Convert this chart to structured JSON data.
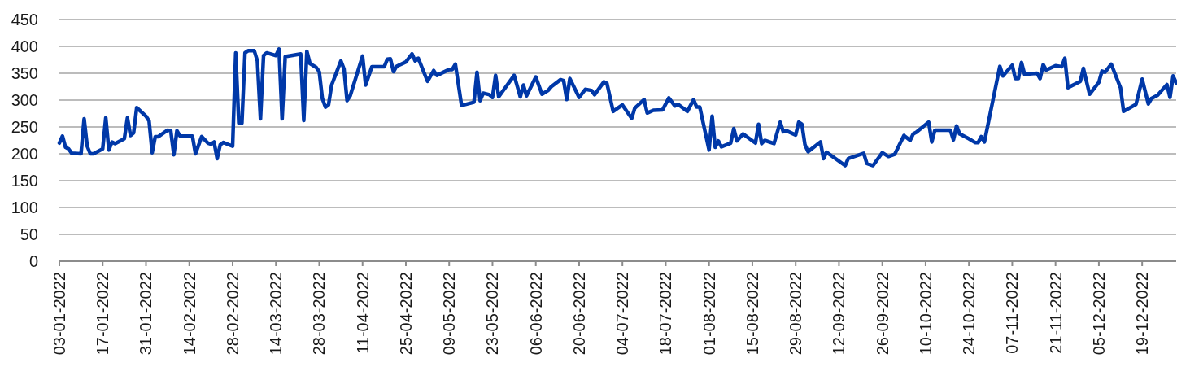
{
  "chart_data": {
    "type": "line",
    "x": [
      "2022-01-03",
      "2022-01-04",
      "2022-01-05",
      "2022-01-06",
      "2022-01-07",
      "2022-01-10",
      "2022-01-11",
      "2022-01-12",
      "2022-01-13",
      "2022-01-14",
      "2022-01-17",
      "2022-01-18",
      "2022-01-19",
      "2022-01-20",
      "2022-01-21",
      "2022-01-24",
      "2022-01-25",
      "2022-01-26",
      "2022-01-27",
      "2022-01-28",
      "2022-01-31",
      "2022-02-01",
      "2022-02-02",
      "2022-02-03",
      "2022-02-04",
      "2022-02-07",
      "2022-02-08",
      "2022-02-09",
      "2022-02-10",
      "2022-02-11",
      "2022-02-15",
      "2022-02-16",
      "2022-02-18",
      "2022-02-20",
      "2022-02-21",
      "2022-02-22",
      "2022-02-23",
      "2022-02-24",
      "2022-02-25",
      "2022-02-28",
      "2022-03-01",
      "2022-03-02",
      "2022-03-03",
      "2022-03-04",
      "2022-03-05",
      "2022-03-07",
      "2022-03-08",
      "2022-03-09",
      "2022-03-10",
      "2022-03-11",
      "2022-03-14",
      "2022-03-15",
      "2022-03-16",
      "2022-03-17",
      "2022-03-19",
      "2022-03-22",
      "2022-03-23",
      "2022-03-24",
      "2022-03-25",
      "2022-03-27",
      "2022-03-28",
      "2022-03-29",
      "2022-03-30",
      "2022-03-31",
      "2022-04-01",
      "2022-04-04",
      "2022-04-05",
      "2022-04-06",
      "2022-04-07",
      "2022-04-11",
      "2022-04-12",
      "2022-04-14",
      "2022-04-18",
      "2022-04-19",
      "2022-04-20",
      "2022-04-21",
      "2022-04-22",
      "2022-04-25",
      "2022-04-27",
      "2022-04-28",
      "2022-04-29",
      "2022-05-02",
      "2022-05-04",
      "2022-05-05",
      "2022-05-09",
      "2022-05-10",
      "2022-05-11",
      "2022-05-13",
      "2022-05-17",
      "2022-05-18",
      "2022-05-19",
      "2022-05-20",
      "2022-05-22",
      "2022-05-23",
      "2022-05-24",
      "2022-05-25",
      "2022-05-30",
      "2022-06-01",
      "2022-06-02",
      "2022-06-03",
      "2022-06-06",
      "2022-06-08",
      "2022-06-10",
      "2022-06-11",
      "2022-06-14",
      "2022-06-15",
      "2022-06-16",
      "2022-06-17",
      "2022-06-20",
      "2022-06-22",
      "2022-06-24",
      "2022-06-25",
      "2022-06-28",
      "2022-06-29",
      "2022-07-01",
      "2022-07-04",
      "2022-07-07",
      "2022-07-08",
      "2022-07-11",
      "2022-07-12",
      "2022-07-14",
      "2022-07-17",
      "2022-07-19",
      "2022-07-21",
      "2022-07-22",
      "2022-07-25",
      "2022-07-27",
      "2022-07-28",
      "2022-07-29",
      "2022-08-01",
      "2022-08-02",
      "2022-08-03",
      "2022-08-04",
      "2022-08-05",
      "2022-08-08",
      "2022-08-09",
      "2022-08-10",
      "2022-08-12",
      "2022-08-16",
      "2022-08-17",
      "2022-08-18",
      "2022-08-19",
      "2022-08-22",
      "2022-08-24",
      "2022-08-25",
      "2022-08-26",
      "2022-08-29",
      "2022-08-30",
      "2022-08-31",
      "2022-09-01",
      "2022-09-02",
      "2022-09-06",
      "2022-09-07",
      "2022-09-08",
      "2022-09-14",
      "2022-09-15",
      "2022-09-20",
      "2022-09-21",
      "2022-09-23",
      "2022-09-26",
      "2022-09-28",
      "2022-09-30",
      "2022-10-03",
      "2022-10-05",
      "2022-10-06",
      "2022-10-07",
      "2022-10-11",
      "2022-10-12",
      "2022-10-13",
      "2022-10-18",
      "2022-10-19",
      "2022-10-20",
      "2022-10-21",
      "2022-10-24",
      "2022-10-26",
      "2022-10-27",
      "2022-10-28",
      "2022-10-29",
      "2022-11-03",
      "2022-11-04",
      "2022-11-07",
      "2022-11-08",
      "2022-11-09",
      "2022-11-10",
      "2022-11-11",
      "2022-11-15",
      "2022-11-16",
      "2022-11-17",
      "2022-11-18",
      "2022-11-21",
      "2022-11-23",
      "2022-11-24",
      "2022-11-25",
      "2022-11-29",
      "2022-11-30",
      "2022-12-02",
      "2022-12-05",
      "2022-12-06",
      "2022-12-07",
      "2022-12-09",
      "2022-12-12",
      "2022-12-13",
      "2022-12-17",
      "2022-12-19",
      "2022-12-21",
      "2022-12-22",
      "2022-12-24",
      "2022-12-27",
      "2022-12-28",
      "2022-12-29",
      "2022-12-30"
    ],
    "series": [
      {
        "color": "#0038a8",
        "values": [
          220,
          233,
          212,
          209,
          201,
          200,
          265,
          214,
          200,
          200,
          209,
          267,
          207,
          222,
          219,
          228,
          267,
          234,
          239,
          286,
          270,
          261,
          202,
          232,
          232,
          244,
          243,
          198,
          243,
          233,
          233,
          200,
          232,
          220,
          218,
          222,
          191,
          217,
          221,
          214,
          388,
          257,
          257,
          388,
          392,
          392,
          373,
          265,
          383,
          388,
          383,
          395,
          265,
          381,
          383,
          386,
          262,
          391,
          368,
          361,
          353,
          303,
          287,
          291,
          328,
          373,
          358,
          299,
          308,
          382,
          328,
          362,
          362,
          376,
          377,
          353,
          363,
          371,
          386,
          373,
          378,
          335,
          355,
          346,
          357,
          357,
          367,
          290,
          296,
          352,
          299,
          313,
          310,
          305,
          346,
          306,
          346,
          306,
          328,
          308,
          343,
          311,
          318,
          325,
          338,
          336,
          301,
          340,
          305,
          320,
          318,
          310,
          334,
          331,
          279,
          291,
          266,
          285,
          301,
          276,
          281,
          282,
          304,
          289,
          292,
          279,
          301,
          287,
          287,
          207,
          270,
          212,
          224,
          213,
          220,
          247,
          224,
          237,
          220,
          255,
          219,
          225,
          219,
          259,
          241,
          243,
          235,
          259,
          255,
          217,
          204,
          222,
          191,
          203,
          178,
          191,
          201,
          182,
          178,
          202,
          195,
          199,
          234,
          225,
          237,
          240,
          259,
          222,
          244,
          244,
          226,
          252,
          237,
          228,
          221,
          221,
          232,
          222,
          363,
          345,
          365,
          340,
          340,
          370,
          348,
          350,
          340,
          366,
          356,
          364,
          362,
          378,
          323,
          335,
          359,
          311,
          333,
          354,
          352,
          367,
          323,
          279,
          292,
          339,
          293,
          303,
          309,
          329,
          305,
          345,
          332
        ]
      }
    ],
    "xlim": [
      "2022-01-03",
      "2022-12-30"
    ],
    "xticks": [
      {
        "value": "2022-01-03",
        "label": "03-01-2022"
      },
      {
        "value": "2022-01-17",
        "label": "17-01-2022"
      },
      {
        "value": "2022-01-31",
        "label": "31-01-2022"
      },
      {
        "value": "2022-02-14",
        "label": "14-02-2022"
      },
      {
        "value": "2022-02-28",
        "label": "28-02-2022"
      },
      {
        "value": "2022-03-14",
        "label": "14-03-2022"
      },
      {
        "value": "2022-03-28",
        "label": "28-03-2022"
      },
      {
        "value": "2022-04-11",
        "label": "11-04-2022"
      },
      {
        "value": "2022-04-25",
        "label": "25-04-2022"
      },
      {
        "value": "2022-05-09",
        "label": "09-05-2022"
      },
      {
        "value": "2022-05-23",
        "label": "23-05-2022"
      },
      {
        "value": "2022-06-06",
        "label": "06-06-2022"
      },
      {
        "value": "2022-06-20",
        "label": "20-06-2022"
      },
      {
        "value": "2022-07-04",
        "label": "04-07-2022"
      },
      {
        "value": "2022-07-18",
        "label": "18-07-2022"
      },
      {
        "value": "2022-08-01",
        "label": "01-08-2022"
      },
      {
        "value": "2022-08-15",
        "label": "15-08-2022"
      },
      {
        "value": "2022-08-29",
        "label": "29-08-2022"
      },
      {
        "value": "2022-09-12",
        "label": "12-09-2022"
      },
      {
        "value": "2022-09-26",
        "label": "26-09-2022"
      },
      {
        "value": "2022-10-10",
        "label": "10-10-2022"
      },
      {
        "value": "2022-10-24",
        "label": "24-10-2022"
      },
      {
        "value": "2022-11-07",
        "label": "07-11-2022"
      },
      {
        "value": "2022-11-21",
        "label": "21-11-2022"
      },
      {
        "value": "2022-12-05",
        "label": "05-12-2022"
      },
      {
        "value": "2022-12-19",
        "label": "19-12-2022"
      }
    ],
    "ylim": [
      0,
      450
    ],
    "yticks": [
      0,
      50,
      100,
      150,
      200,
      250,
      300,
      350,
      400,
      450
    ],
    "grid": "y"
  }
}
